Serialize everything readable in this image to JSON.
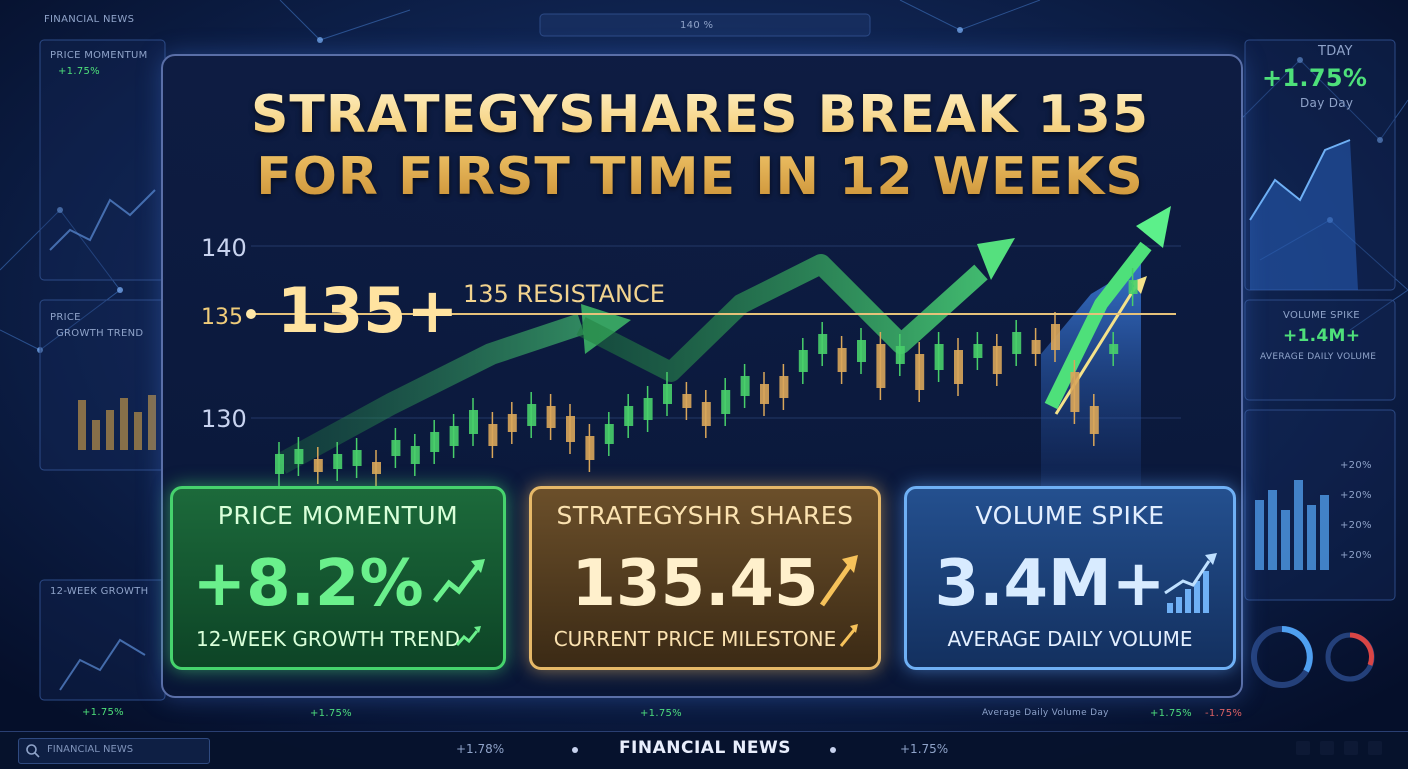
{
  "headline": {
    "line1": "STRATEGYSHARES BREAK 135",
    "line2": "FOR FIRST TIME IN 12 WEEKS"
  },
  "chart_data": {
    "type": "candlestick",
    "y_ticks": [
      "140",
      "135",
      "130"
    ],
    "resistance_level": 135,
    "resistance_label": "135 RESISTANCE",
    "resistance_callout": "135+",
    "ylim": [
      126,
      142
    ]
  },
  "cards": {
    "momentum": {
      "title": "PRICE MOMENTUM",
      "value": "+8.2%",
      "subtitle": "12-WEEK GROWTH TREND"
    },
    "shares": {
      "title": "STRATEGYSHR SHARES",
      "value": "135.45",
      "subtitle": "CURRENT PRICE MILESTONE"
    },
    "volume": {
      "title": "VOLUME SPIKE",
      "value": "3.4M+",
      "subtitle": "AVERAGE DAILY VOLUME"
    }
  },
  "background": {
    "top_left_label": "FINANCIAL NEWS",
    "price_momentum_label": "PRICE MOMENTUM",
    "price_label": "PRICE",
    "growth_trend_label": "GROWTH TREND",
    "week_growth_label": "12-WEEK GROWTH",
    "top_center_value": "140 %",
    "today_label": "TDAY",
    "today_value": "+1.75%",
    "day_label": "Day Day",
    "volume_spike_label": "VOLUME SPIKE",
    "volume_spike_value": "+1.4M+",
    "avg_daily_volume_label": "AVERAGE DAILY VOLUME",
    "avg_daily_volume_day_label": "Average Daily Volume Day",
    "left_values": [
      "+1.75%",
      "+1.75%"
    ],
    "bottom_values": [
      "+1.75%",
      "+1.75%",
      "+1.75%",
      "-1.75%"
    ],
    "right_axis_values": [
      "+20%",
      "+20%",
      "+20%",
      "+20%"
    ]
  },
  "ticker": {
    "label": "FINANCIAL NEWS",
    "left_value": "+1.78%",
    "right_value": "+1.75%",
    "search_placeholder": "FINANCIAL NEWS"
  },
  "colors": {
    "green": "#46d36d",
    "gold": "#e6b868",
    "blue": "#6fb0f5",
    "background": "#061433"
  }
}
